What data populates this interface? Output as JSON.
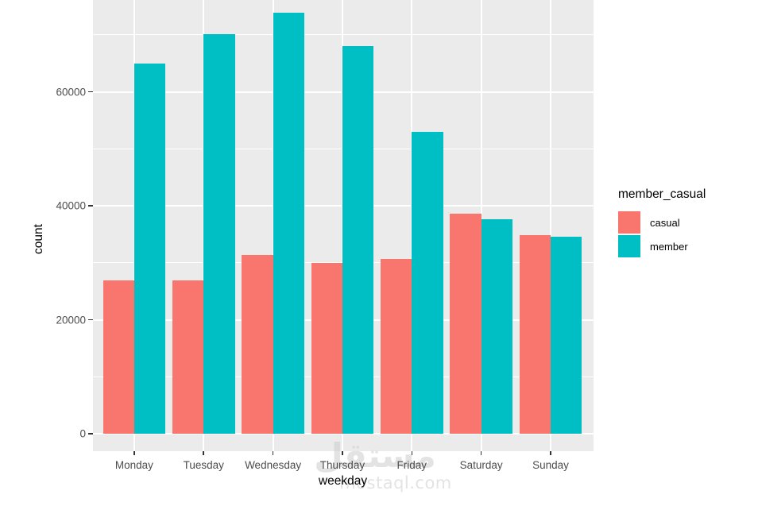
{
  "chart_data": {
    "type": "bar",
    "mode": "grouped-dodge",
    "title": "",
    "xlabel": "weekday",
    "ylabel": "count",
    "categories": [
      "Monday",
      "Tuesday",
      "Wednesday",
      "Thursday",
      "Friday",
      "Saturday",
      "Sunday"
    ],
    "series": [
      {
        "name": "casual",
        "color": "#F8766D",
        "values": [
          26900,
          26900,
          31300,
          30000,
          30700,
          38600,
          34800
        ]
      },
      {
        "name": "member",
        "color": "#00BFC4",
        "values": [
          64900,
          70100,
          73800,
          68000,
          53000,
          37600,
          34500
        ]
      }
    ],
    "y_axis": {
      "ticks": [
        0,
        20000,
        40000,
        60000
      ],
      "minor_ticks": [
        10000,
        30000,
        50000,
        70000
      ],
      "range": [
        0,
        76000
      ]
    },
    "legend": {
      "title": "member_casual",
      "position": "right"
    },
    "grid": true,
    "theme": "ggplot2-gray"
  },
  "watermark": {
    "brand_arabic": "مستقل",
    "brand_domain": "mostaql.com"
  },
  "colors": {
    "casual": "#F8766D",
    "member": "#00BFC4",
    "panel_bg": "#EBEBEB",
    "gridline": "#FFFFFF",
    "axis_text": "#4D4D4D",
    "title_text": "#000000",
    "tick_mark": "#333333",
    "watermark": "#CDCDCD"
  }
}
